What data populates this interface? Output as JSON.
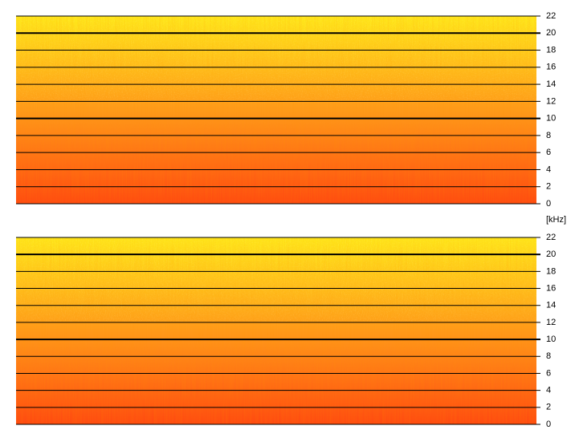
{
  "chart_data": [
    {
      "type": "spectrogram",
      "ylim": [
        0,
        22
      ],
      "yticks": [
        0,
        2,
        4,
        6,
        8,
        10,
        12,
        14,
        16,
        18,
        20,
        22
      ],
      "major_yticks": [
        10,
        20
      ],
      "grid": true,
      "colors": [
        "#ff4a10",
        "#ff9a1a",
        "#ffe81a"
      ]
    },
    {
      "type": "spectrogram",
      "ylabel": "[kHz]",
      "ylim": [
        0,
        22
      ],
      "yticks": [
        0,
        2,
        4,
        6,
        8,
        10,
        12,
        14,
        16,
        18,
        20,
        22
      ],
      "major_yticks": [
        10,
        20
      ],
      "grid": true,
      "colors": [
        "#ff4a10",
        "#ff9a1a",
        "#ffe81a"
      ]
    }
  ]
}
